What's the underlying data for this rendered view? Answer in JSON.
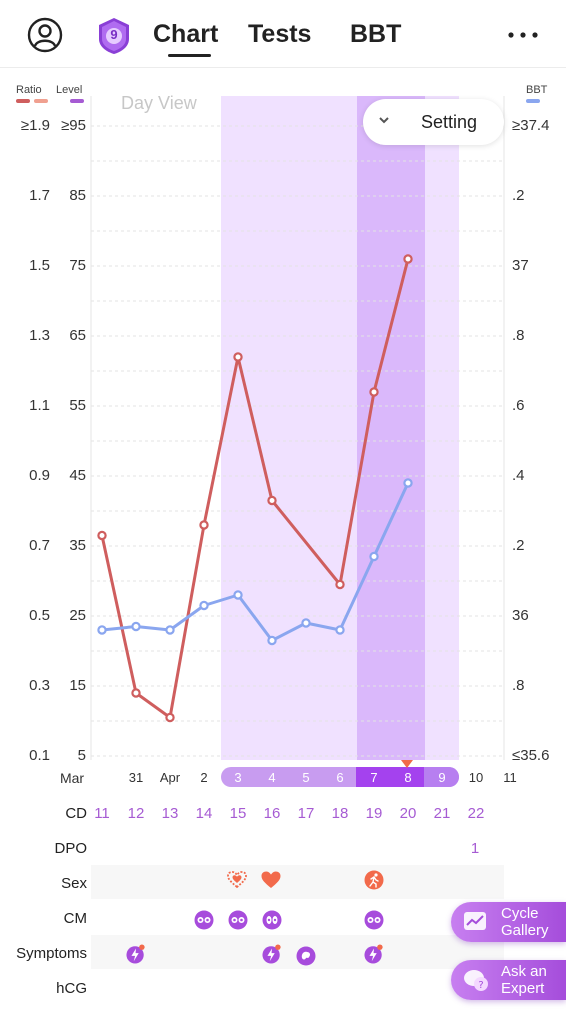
{
  "header": {
    "badge_number": "9",
    "tabs": [
      {
        "label": "Chart",
        "active": true
      },
      {
        "label": "Tests",
        "active": false
      },
      {
        "label": "BBT",
        "active": false
      }
    ],
    "more_label": "•••"
  },
  "legend": {
    "ratio": "Ratio",
    "level": "Level",
    "bbt": "BBT",
    "colors": {
      "ratio": "#cf5e5e",
      "level": "#a65bd3",
      "bbt": "#8aa6ef"
    }
  },
  "controls": {
    "day_view": "Day View",
    "setting": "Setting"
  },
  "axes": {
    "ratio_ticks": [
      "≥1.9",
      "1.7",
      "1.5",
      "1.3",
      "1.1",
      "0.9",
      "0.7",
      "0.5",
      "0.3",
      "0.1"
    ],
    "level_ticks": [
      "≥95",
      "85",
      "75",
      "65",
      "55",
      "45",
      "35",
      "25",
      "15",
      "5"
    ],
    "bbt_ticks": [
      "≥37.4",
      ".2",
      "37",
      ".8",
      ".6",
      ".4",
      ".2",
      "36",
      ".8",
      "≤35.6"
    ]
  },
  "chart_data": {
    "type": "line",
    "x": [
      "30",
      "31",
      "1",
      "2",
      "3",
      "4",
      "5",
      "6",
      "7",
      "8",
      "9",
      "10",
      "11"
    ],
    "ylim_level": [
      5,
      95
    ],
    "ylim_bbt": [
      35.6,
      37.4
    ],
    "series": [
      {
        "id": "ratio",
        "values": [
          36.5,
          14.0,
          10.5,
          38.0,
          62.0,
          41.5,
          null,
          29.5,
          57.0,
          76.0,
          null,
          null,
          null
        ]
      },
      {
        "id": "bbt",
        "values": [
          35.96,
          35.97,
          35.96,
          36.03,
          36.06,
          35.93,
          35.98,
          35.96,
          36.17,
          36.38,
          null,
          null,
          null
        ]
      }
    ],
    "fertile_window": [
      "3",
      "9"
    ],
    "peak_days": [
      "7",
      "8"
    ]
  },
  "dates": {
    "month_start": "Mar",
    "labels": [
      "31",
      "Apr",
      "2",
      "3",
      "4",
      "5",
      "6",
      "7",
      "8",
      "9",
      "10",
      "11"
    ]
  },
  "rows": {
    "cd_label": "CD",
    "dpo_label": "DPO",
    "sex_label": "Sex",
    "cm_label": "CM",
    "symptoms_label": "Symptoms",
    "hcg_label": "hCG",
    "cd": [
      "11",
      "12",
      "13",
      "14",
      "15",
      "16",
      "17",
      "18",
      "19",
      "20",
      "21",
      "22"
    ],
    "dpo": [
      "1"
    ]
  },
  "icons": {
    "sex": [
      "heart-outline-icon",
      "heart-icon",
      "running-icon"
    ],
    "cm": [
      "cm-sticky-icon",
      "cm-creamy-icon",
      "cm-egg-white-icon",
      "cm-creamy-icon"
    ],
    "symptoms": [
      "symptom-bolt-icon",
      "symptom-bolt-icon",
      "symptom-blob-icon",
      "symptom-bolt-icon"
    ]
  },
  "buttons": {
    "cycle_gallery": "Cycle Gallery",
    "ask_expert": "Ask an Expert"
  }
}
